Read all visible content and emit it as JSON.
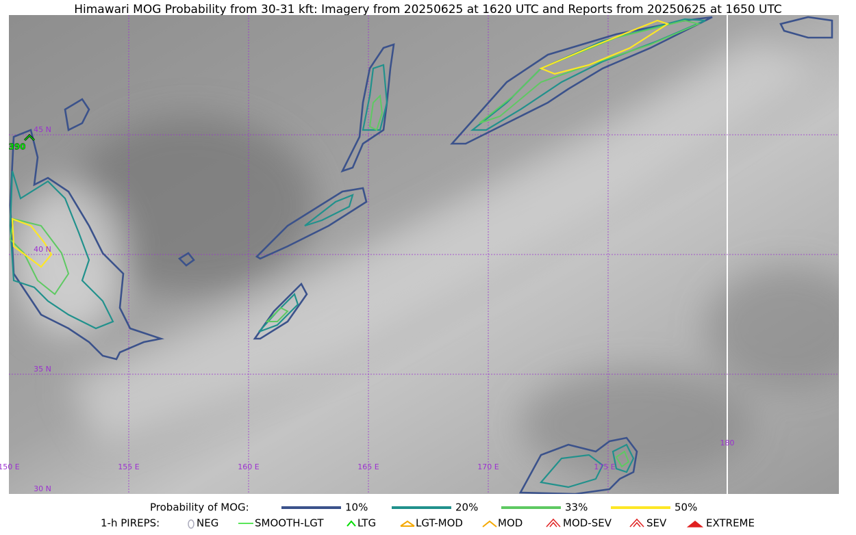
{
  "title": "Himawari MOG Probability from 30-31 kft: Imagery from 20250625 at 1620 UTC and Reports from 20250625 at 1650 UTC",
  "map": {
    "lat_labels": [
      "45 N",
      "40 N",
      "35 N",
      "30 N"
    ],
    "lon_labels": [
      "150 E",
      "155 E",
      "160 E",
      "165 E",
      "170 E",
      "175 E",
      "180"
    ],
    "pirep_label": "390"
  },
  "legend": {
    "probability": {
      "title": "Probability of MOG:",
      "levels": [
        {
          "label": "10%",
          "color": "#3b528b"
        },
        {
          "label": "20%",
          "color": "#21918c"
        },
        {
          "label": "33%",
          "color": "#5ec962"
        },
        {
          "label": "50%",
          "color": "#fde725"
        }
      ]
    },
    "pireps": {
      "title": "1-h PIREPS:",
      "items": [
        "NEG",
        "SMOOTH-LGT",
        "LTG",
        "LGT-MOD",
        "MOD",
        "MOD-SEV",
        "SEV",
        "EXTREME"
      ]
    }
  }
}
